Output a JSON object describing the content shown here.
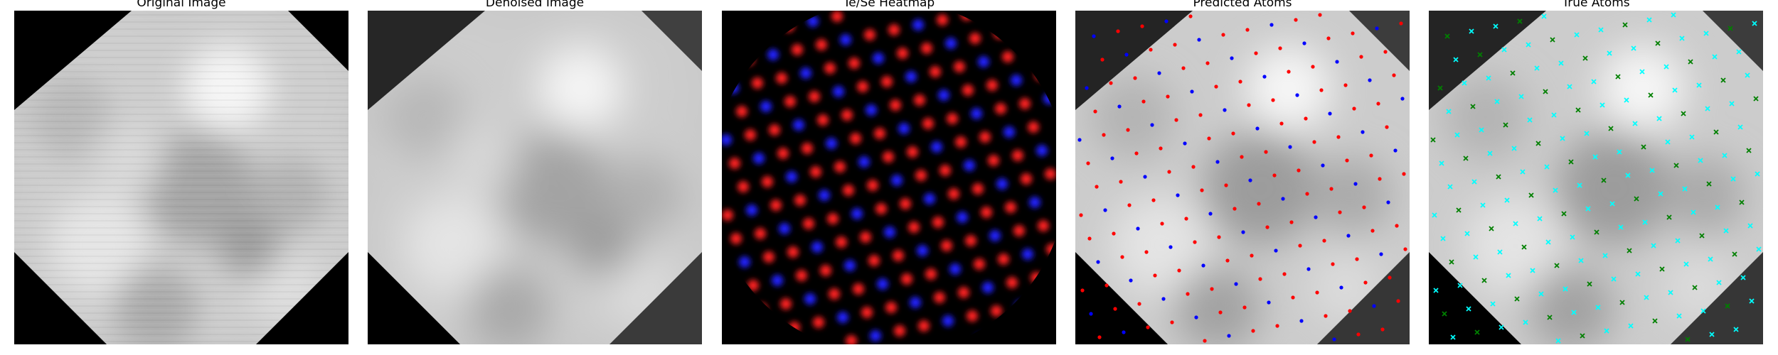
{
  "panels": [
    {
      "title": "Original Image",
      "kind": "original"
    },
    {
      "title": "Denoised Image",
      "kind": "denoised"
    },
    {
      "title": "Te/Se Heatmap",
      "kind": "heatmap"
    },
    {
      "title": "Predicted Atoms",
      "kind": "predicted"
    },
    {
      "title": "True Atoms",
      "kind": "true"
    }
  ],
  "colors": {
    "te_heat": "#ff2020",
    "se_heat": "#2020ff",
    "predicted_te": "#ff0000",
    "predicted_se": "#0000ff",
    "true_te": "#00ffff",
    "true_se": "#008000",
    "background": "#000000"
  }
}
